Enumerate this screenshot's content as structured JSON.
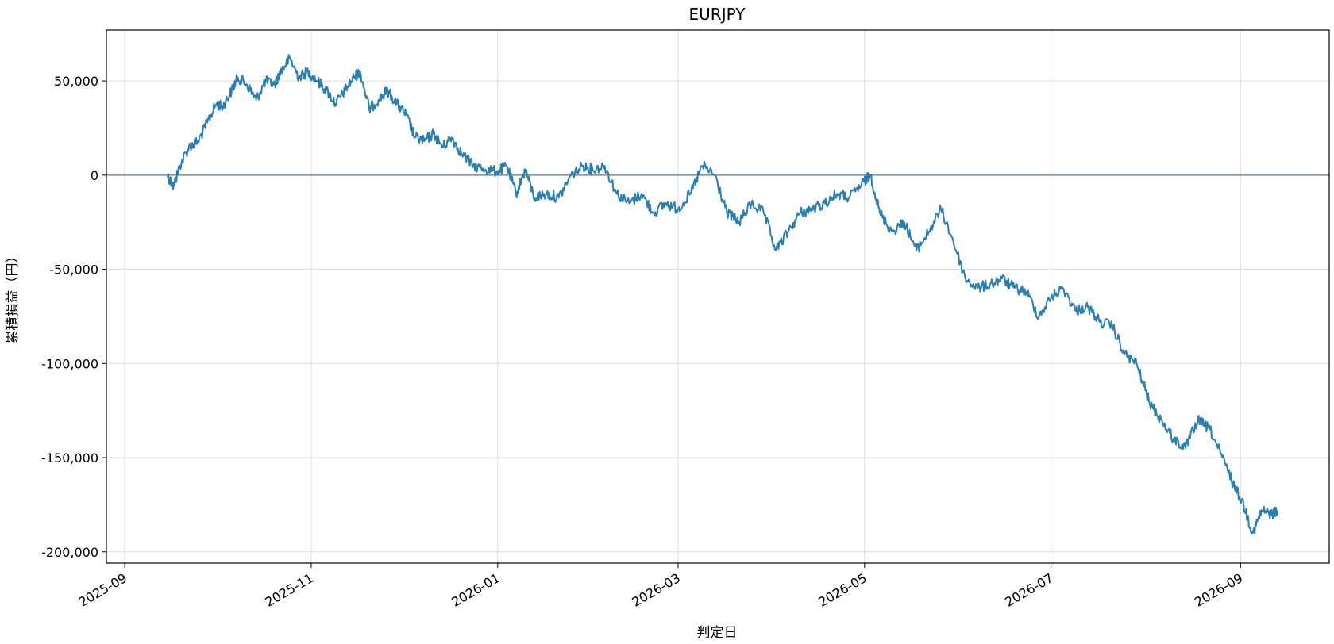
{
  "chart_data": {
    "type": "line",
    "title": "EURJPY",
    "xlabel": "判定日",
    "ylabel": "累積損益（円）",
    "x_ticks": [
      "2025-09",
      "2025-11",
      "2026-01",
      "2026-03",
      "2026-05",
      "2026-07",
      "2026-09"
    ],
    "y_ticks": [
      50000,
      0,
      -50000,
      -100000,
      -150000,
      -200000
    ],
    "y_tick_labels": [
      "50,000",
      "0",
      "-50,000",
      "-100,000",
      "-150,000",
      "-200,000"
    ],
    "xlim": [
      "2025-08-26",
      "2026-09-30"
    ],
    "ylim": [
      -206000,
      77000
    ],
    "grid": true,
    "zero_line": true,
    "colors": {
      "line": "#2a7fb0",
      "zero_line": "#5b7a90",
      "grid": "#dddddd"
    },
    "series": [
      {
        "x": [
          "2025-09-15",
          "2025-09-17",
          "2025-09-19",
          "2025-09-22",
          "2025-09-25",
          "2025-09-28",
          "2025-10-01",
          "2025-10-03",
          "2025-10-06",
          "2025-10-08",
          "2025-10-11",
          "2025-10-14",
          "2025-10-17",
          "2025-10-20",
          "2025-10-22",
          "2025-10-25",
          "2025-10-28",
          "2025-10-31",
          "2025-11-03",
          "2025-11-06",
          "2025-11-09",
          "2025-11-12",
          "2025-11-15",
          "2025-11-17",
          "2025-11-20",
          "2025-11-23",
          "2025-11-26",
          "2025-11-29",
          "2025-12-02",
          "2025-12-05",
          "2025-12-08",
          "2025-12-11",
          "2025-12-14",
          "2025-12-17",
          "2025-12-20",
          "2025-12-24",
          "2025-12-28",
          "2026-01-01",
          "2026-01-04",
          "2026-01-07",
          "2026-01-10",
          "2026-01-13",
          "2026-01-17",
          "2026-01-21",
          "2026-01-25",
          "2026-01-29",
          "2026-02-01",
          "2026-02-05",
          "2026-02-09",
          "2026-02-13",
          "2026-02-17",
          "2026-02-21",
          "2026-02-25",
          "2026-03-01",
          "2026-03-05",
          "2026-03-09",
          "2026-03-13",
          "2026-03-17",
          "2026-03-21",
          "2026-03-25",
          "2026-03-29",
          "2026-04-02",
          "2026-04-06",
          "2026-04-10",
          "2026-04-14",
          "2026-04-18",
          "2026-04-22",
          "2026-04-26",
          "2026-04-30",
          "2026-05-03",
          "2026-05-06",
          "2026-05-10",
          "2026-05-14",
          "2026-05-18",
          "2026-05-22",
          "2026-05-26",
          "2026-05-30",
          "2026-06-03",
          "2026-06-07",
          "2026-06-11",
          "2026-06-15",
          "2026-06-19",
          "2026-06-23",
          "2026-06-27",
          "2026-07-01",
          "2026-07-05",
          "2026-07-09",
          "2026-07-13",
          "2026-07-17",
          "2026-07-21",
          "2026-07-25",
          "2026-07-29",
          "2026-08-02",
          "2026-08-06",
          "2026-08-10",
          "2026-08-14",
          "2026-08-18",
          "2026-08-22",
          "2026-08-26",
          "2026-08-30",
          "2026-09-02",
          "2026-09-05",
          "2026-09-08",
          "2026-09-11",
          "2026-09-13"
        ],
        "values": [
          0,
          -6000,
          5000,
          15000,
          18000,
          28000,
          38000,
          36000,
          45000,
          52000,
          48000,
          40000,
          50000,
          48000,
          55000,
          62000,
          52000,
          55000,
          50000,
          45000,
          38000,
          45000,
          52000,
          55000,
          35000,
          40000,
          45000,
          38000,
          32000,
          20000,
          18000,
          22000,
          15000,
          20000,
          12000,
          5000,
          3000,
          2000,
          5000,
          -10000,
          3000,
          -12000,
          -10000,
          -12000,
          0,
          5000,
          3000,
          5000,
          -10000,
          -15000,
          -10000,
          -20000,
          -15000,
          -18000,
          -10000,
          5000,
          0,
          -20000,
          -25000,
          -15000,
          -20000,
          -40000,
          -30000,
          -20000,
          -18000,
          -15000,
          -10000,
          -12000,
          -5000,
          0,
          -20000,
          -30000,
          -25000,
          -40000,
          -30000,
          -18000,
          -35000,
          -55000,
          -60000,
          -58000,
          -55000,
          -60000,
          -62000,
          -75000,
          -65000,
          -60000,
          -72000,
          -70000,
          -78000,
          -80000,
          -95000,
          -100000,
          -120000,
          -130000,
          -140000,
          -145000,
          -130000,
          -135000,
          -150000,
          -165000,
          -175000,
          -190000,
          -178000,
          -180000,
          -178000
        ]
      }
    ]
  }
}
